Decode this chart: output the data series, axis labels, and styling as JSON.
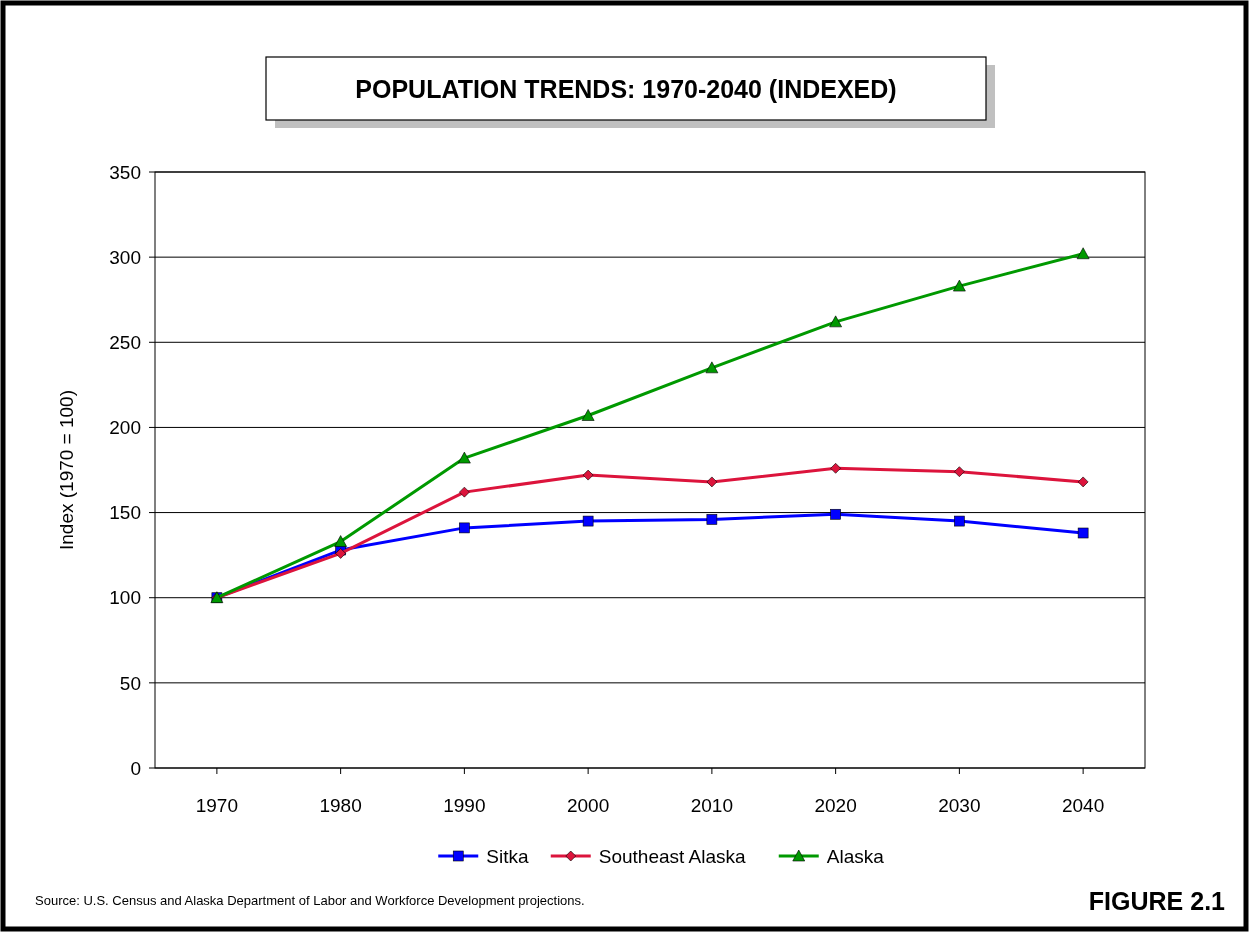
{
  "chart_data": {
    "type": "line",
    "title": "POPULATION TRENDS: 1970-2040 (INDEXED)",
    "ylabel": "Index (1970 = 100)",
    "categories": [
      "1970",
      "1980",
      "1990",
      "2000",
      "2010",
      "2020",
      "2030",
      "2040"
    ],
    "series": [
      {
        "name": "Sitka",
        "color": "#0000ff",
        "marker": "square",
        "values": [
          100,
          128,
          141,
          145,
          146,
          149,
          145,
          138
        ]
      },
      {
        "name": "Southeast Alaska",
        "color": "#dc143c",
        "marker": "diamond",
        "values": [
          100,
          126,
          162,
          172,
          168,
          176,
          174,
          168
        ]
      },
      {
        "name": "Alaska",
        "color": "#009900",
        "marker": "triangle",
        "values": [
          100,
          133,
          182,
          207,
          235,
          262,
          283,
          302
        ]
      }
    ],
    "ylim": [
      0,
      350
    ],
    "yticks": [
      0,
      50,
      100,
      150,
      200,
      250,
      300,
      350
    ],
    "grid": "y",
    "legend": "bottom",
    "line_style": "solid",
    "annotations": [
      "Source:  U.S. Census and Alaska Department of Labor and Workforce Development projections.",
      "FIGURE 2.1"
    ]
  }
}
